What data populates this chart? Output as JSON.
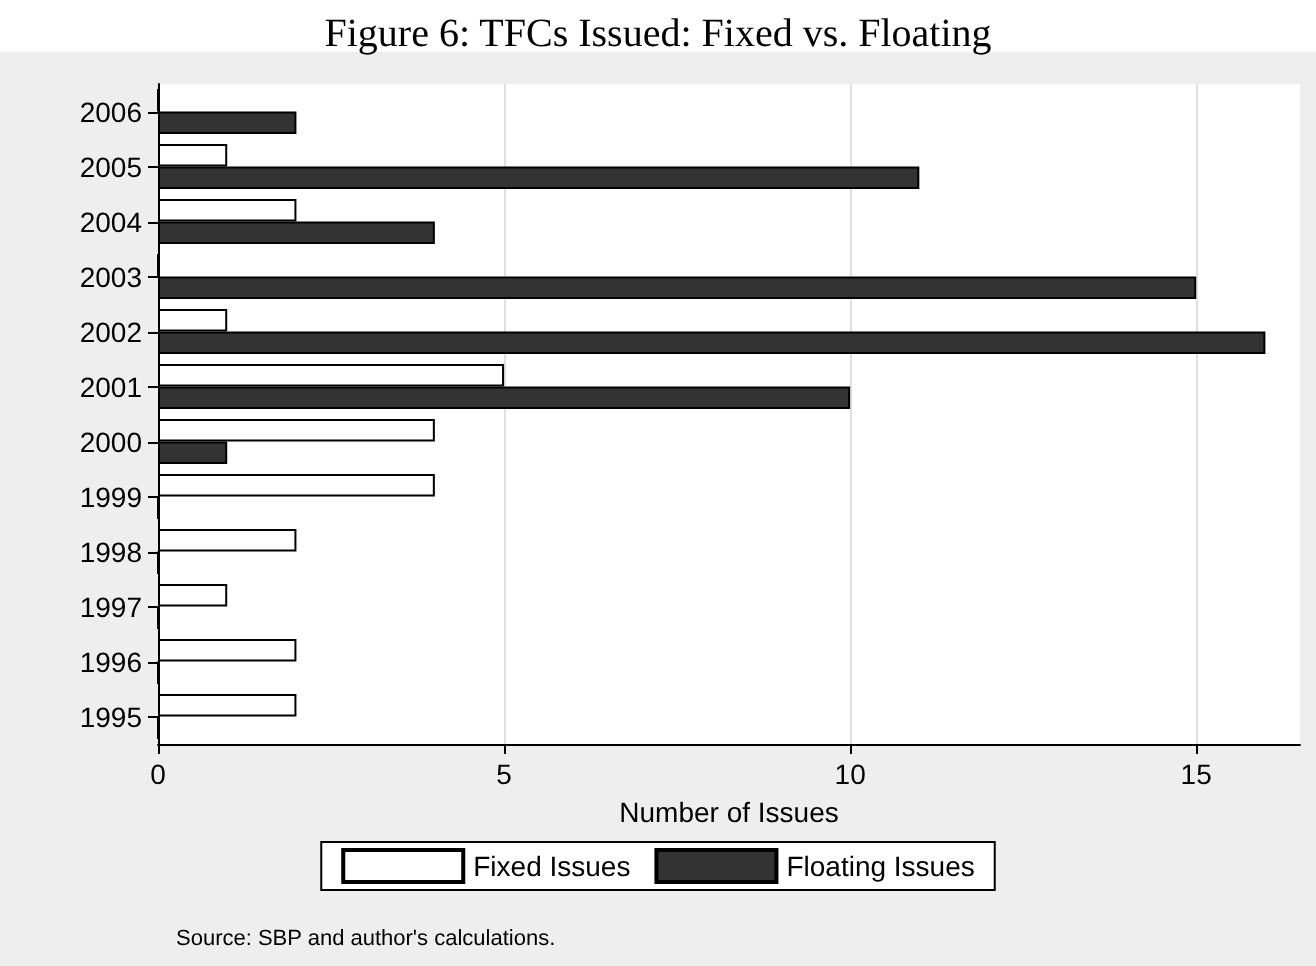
{
  "chart_data": {
    "type": "bar",
    "orientation": "horizontal",
    "title": "Figure 6: TFCs Issued: Fixed vs. Floating",
    "categories": [
      "2006",
      "2005",
      "2004",
      "2003",
      "2002",
      "2001",
      "2000",
      "1999",
      "1998",
      "1997",
      "1996",
      "1995"
    ],
    "series": [
      {
        "name": "Fixed Issues",
        "color": "#ffffff",
        "values": [
          0,
          1,
          2,
          0,
          1,
          5,
          4,
          4,
          2,
          1,
          2,
          2
        ]
      },
      {
        "name": "Floating Issues",
        "color": "#333333",
        "values": [
          2,
          11,
          4,
          15,
          16,
          10,
          1,
          0,
          0,
          0,
          0,
          0
        ]
      }
    ],
    "xlabel": "Number of Issues",
    "xlim": [
      0,
      16.5
    ],
    "xticks": [
      0,
      5,
      10,
      15
    ],
    "grid": "x",
    "legend": "bottom",
    "annotations": [
      "Source: SBP and author's calculations."
    ]
  }
}
